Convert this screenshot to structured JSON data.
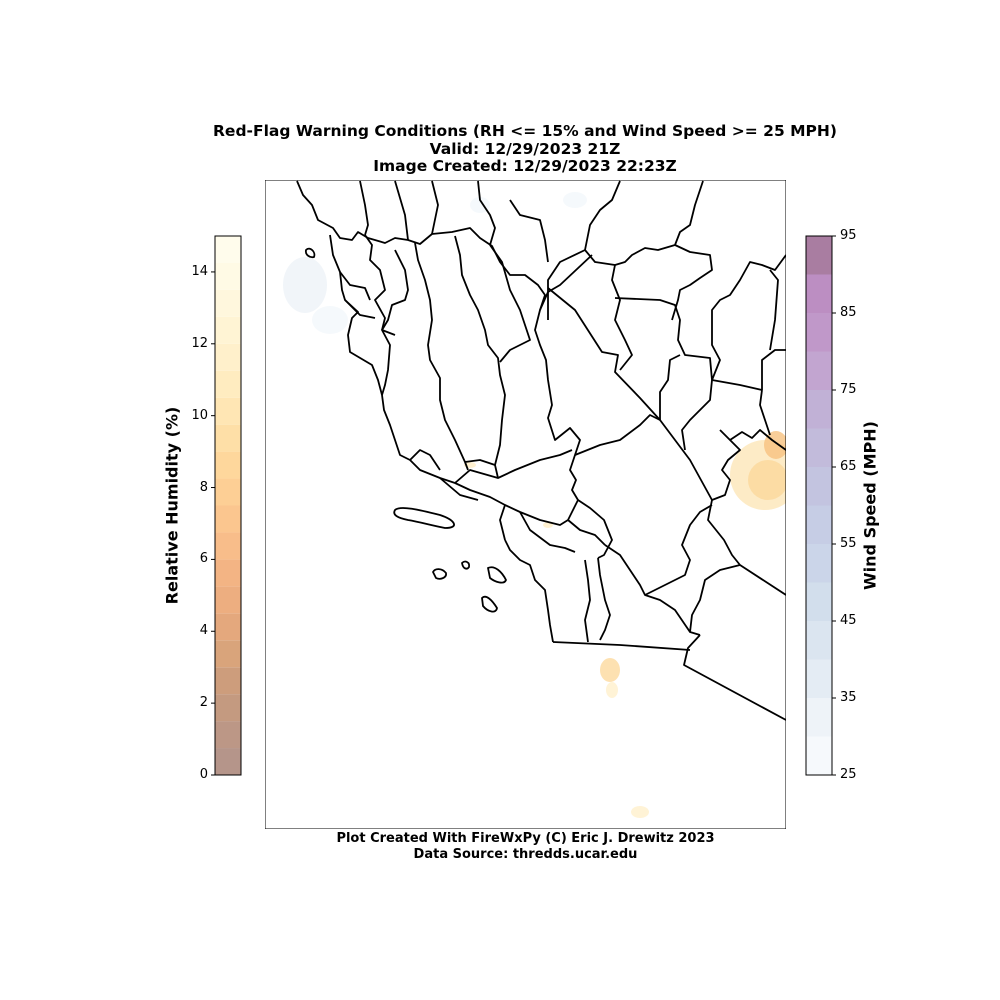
{
  "title": {
    "line1": "Red-Flag Warning Conditions (RH <= 15% and Wind Speed >= 25 MPH)",
    "line2": "Valid: 12/29/2023 21Z",
    "line3": "Image Created: 12/29/2023 22:23Z"
  },
  "footer": {
    "credit": "Plot Created With FireWxPy (C) Eric J. Drewitz 2023",
    "source": "Data Source: thredds.ucar.edu"
  },
  "colorbars": {
    "humidity": {
      "label": "Relative Humidity (%)",
      "min": 0,
      "max": 15,
      "step": 0.75,
      "ticks": [
        "0",
        "2",
        "4",
        "6",
        "8",
        "10",
        "12",
        "14"
      ],
      "tick_values": [
        0,
        2,
        4,
        6,
        8,
        10,
        12,
        14
      ],
      "colors": [
        "#b5958a",
        "#bc9786",
        "#c49a80",
        "#cd9d7c",
        "#d9a47b",
        "#e4a87d",
        "#edae80",
        "#f3b484",
        "#f8bd8a",
        "#fbc68f",
        "#fdcf95",
        "#fed79c",
        "#fedfa7",
        "#ffe6b4",
        "#ffecc0",
        "#fff0cb",
        "#fff4d4",
        "#fff7dd",
        "#fffae5",
        "#fffcec"
      ]
    },
    "wind": {
      "label": "Wind Speed (MPH)",
      "min": 25,
      "max": 95,
      "step": 5,
      "ticks": [
        "25",
        "35",
        "45",
        "55",
        "65",
        "75",
        "85",
        "95"
      ],
      "tick_values": [
        25,
        35,
        45,
        55,
        65,
        75,
        85,
        95
      ],
      "colors": [
        "#f6f9fc",
        "#eef3f8",
        "#e4ecf4",
        "#dbe5f0",
        "#d2deec",
        "#cbd5e9",
        "#c6cde5",
        "#c3c4e0",
        "#c2bbdb",
        "#c1b1d6",
        "#c2a5d0",
        "#c098c9",
        "#bc8ec2",
        "#a97da1"
      ]
    }
  }
}
